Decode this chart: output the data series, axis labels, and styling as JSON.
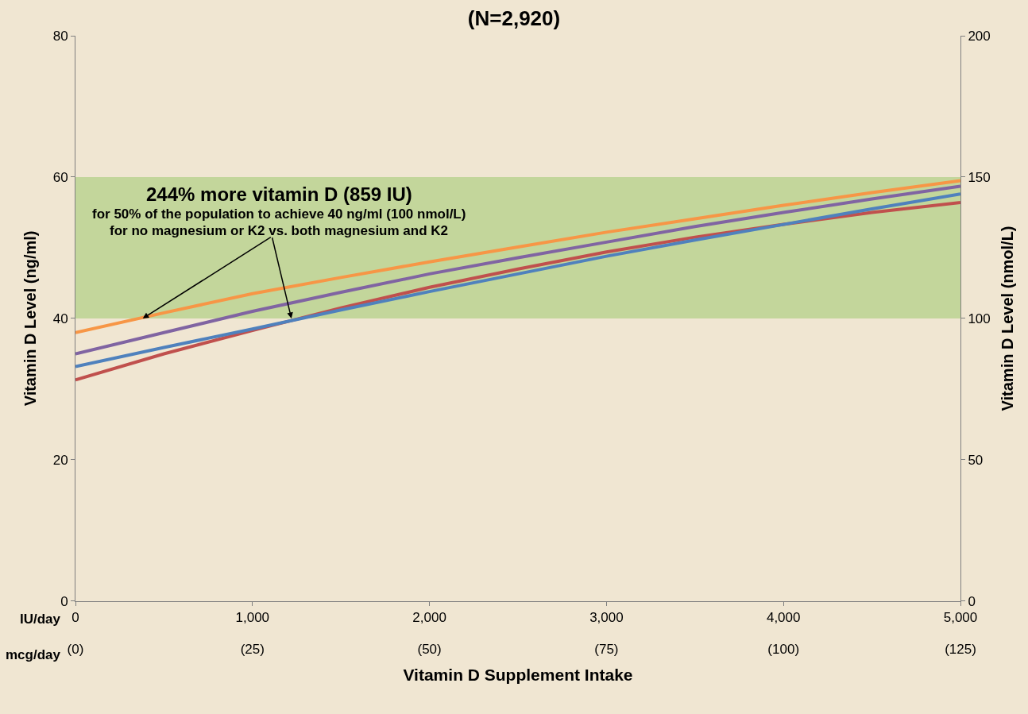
{
  "chart_data": {
    "type": "line",
    "title": "(N=2,920)",
    "xlabel": "Vitamin D Supplement Intake",
    "ylabel": "Vitamin D Level (ng/ml)",
    "y2label": "Vitamin D Level (nmol/L)",
    "x": [
      0,
      500,
      1000,
      1500,
      2000,
      2500,
      3000,
      3500,
      4000,
      4500,
      5000
    ],
    "series": [
      {
        "color": "#c0504d",
        "values": [
          31.3,
          35.0,
          38.3,
          41.5,
          44.4,
          47.0,
          49.4,
          51.5,
          53.3,
          55.0,
          56.4
        ]
      },
      {
        "color": "#4f81bd",
        "values": [
          33.2,
          35.9,
          38.5,
          41.2,
          43.8,
          46.3,
          48.8,
          51.1,
          53.3,
          55.5,
          57.6
        ]
      },
      {
        "color": "#8064a2",
        "values": [
          35.0,
          38.0,
          41.0,
          43.7,
          46.3,
          48.6,
          50.8,
          53.0,
          55.0,
          56.9,
          58.7
        ]
      },
      {
        "color": "#f79646",
        "values": [
          38.0,
          40.8,
          43.5,
          45.8,
          48.0,
          50.1,
          52.2,
          54.1,
          56.0,
          57.8,
          59.5
        ]
      }
    ],
    "xlim": [
      0,
      5000
    ],
    "xticks": [
      0,
      {
        "value": 1000,
        "label": "1,000"
      },
      {
        "value": 2000,
        "label": "2,000"
      },
      {
        "value": 3000,
        "label": "3,000"
      },
      {
        "value": 4000,
        "label": "4,000"
      },
      {
        "value": 5000,
        "label": "5,000"
      }
    ],
    "x2lim": [
      0,
      125
    ],
    "x2ticks": [
      {
        "value": 0,
        "label": "(0)"
      },
      {
        "value": 25,
        "label": "(25)"
      },
      {
        "value": 50,
        "label": "(50)"
      },
      {
        "value": 75,
        "label": "(75)"
      },
      {
        "value": 100,
        "label": "(100)"
      },
      {
        "value": 125,
        "label": "(125)"
      }
    ],
    "ylim": [
      0,
      80
    ],
    "yticks": [
      0,
      20,
      40,
      60,
      80
    ],
    "y2lim": [
      0,
      200
    ],
    "y2ticks": [
      0,
      50,
      100,
      150,
      200
    ],
    "bands": [
      {
        "axis": "y",
        "from": 40,
        "to": 60,
        "color": "#c3d69b"
      }
    ],
    "annotations": [
      "244% more vitamin D (859 IU)",
      {
        "text": "for 50% of the population to achieve 40 ng/ml (100 nmol/L)",
        "x": 1220,
        "y": 40
      },
      {
        "text": "for no magnesium or K2 vs. both magnesium and K2",
        "x": 380,
        "y": 40
      },
      "IU/day",
      "mcg/day"
    ],
    "grid": false,
    "marker": "none",
    "line_style": "solid"
  }
}
